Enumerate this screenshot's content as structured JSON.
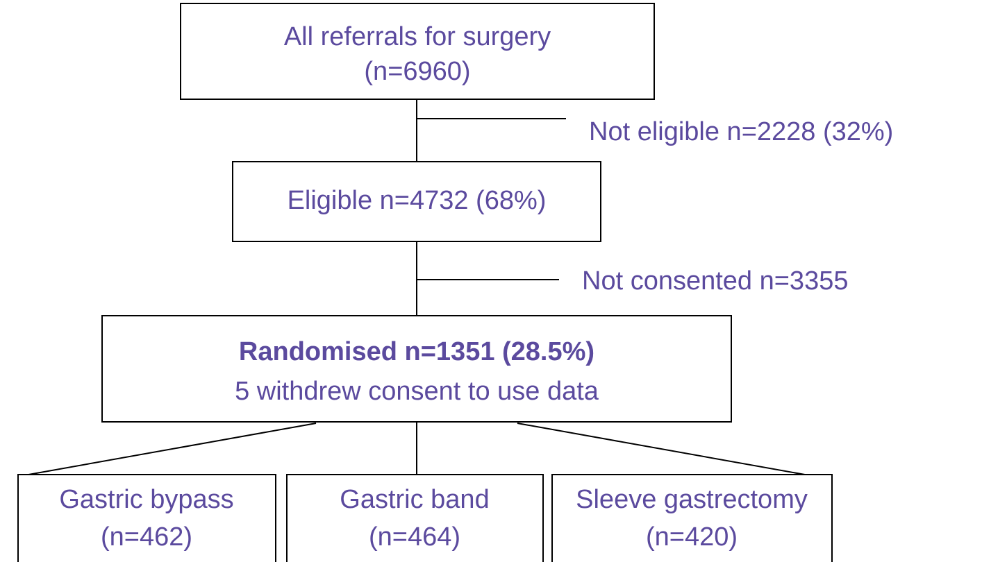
{
  "nodes": [
    {
      "lines": [
        "All referrals for surgery",
        "(n=6960)"
      ]
    },
    {
      "lines": [
        "Eligible n=4732 (68%)"
      ]
    },
    {
      "lines": [
        "Randomised n=1351 (28.5%)",
        "5 withdrew consent to use data"
      ]
    },
    {
      "lines": [
        "Gastric bypass",
        "(n=462)"
      ]
    },
    {
      "lines": [
        "Gastric band",
        "(n=464)"
      ]
    },
    {
      "lines": [
        "Sleeve gastrectomy",
        "(n=420)"
      ]
    }
  ],
  "exclusions": [
    "Not eligible n=2228 (32%)",
    "Not consented n=3355"
  ]
}
